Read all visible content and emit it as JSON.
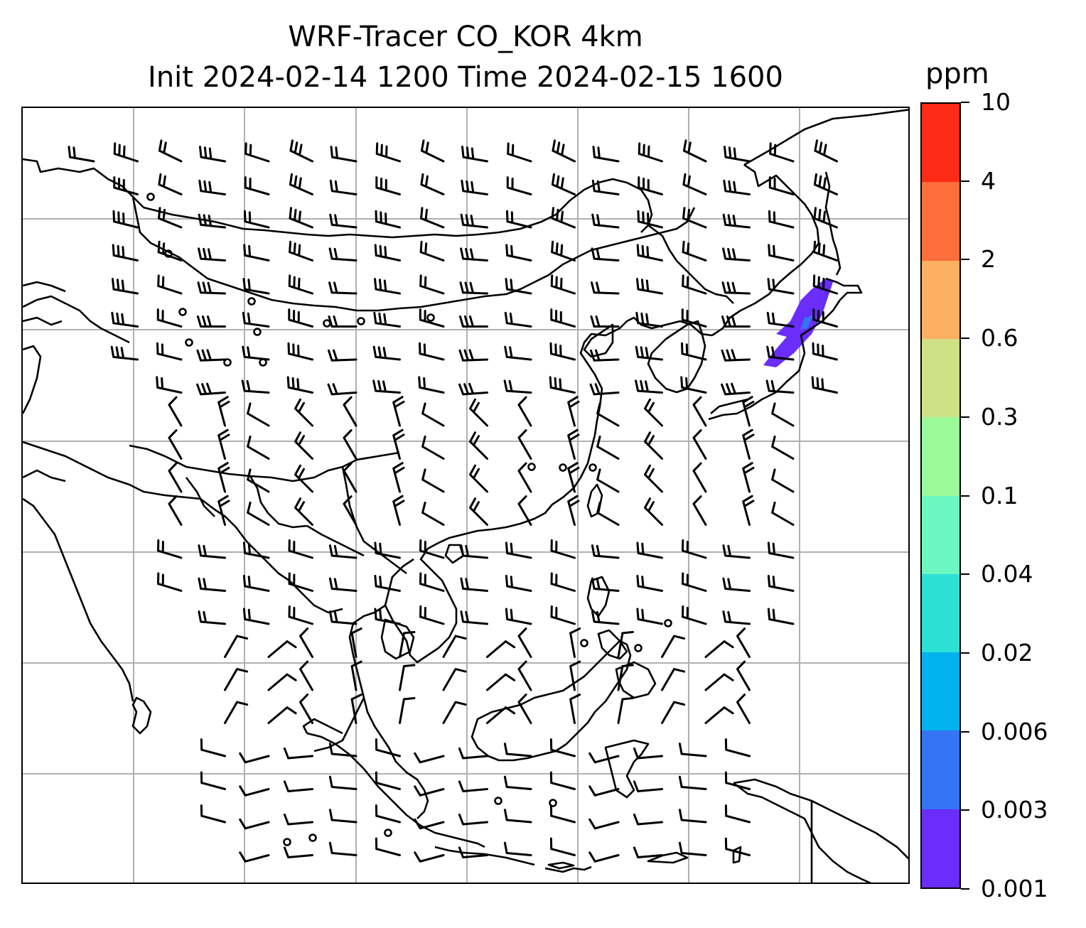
{
  "title": {
    "line1": "WRF-Tracer CO_KOR 4km",
    "line2": "Init 2024-02-14 1200 Time 2024-02-15 1600"
  },
  "colorbar": {
    "unit": "ppm",
    "levels": [
      "0.001",
      "0.003",
      "0.006",
      "0.02",
      "0.04",
      "0.1",
      "0.3",
      "0.6",
      "2",
      "4",
      "10"
    ],
    "colors": [
      "#6a2dfa",
      "#3574f4",
      "#00b2ee",
      "#2de0d4",
      "#6cf7c0",
      "#9cf99a",
      "#d0e084",
      "#fdb062",
      "#fd6e3a",
      "#fe2b17"
    ]
  },
  "map": {
    "gridlines": true,
    "plume_color": "#6a2dfa",
    "plume_min_color": "#3574f4"
  }
}
